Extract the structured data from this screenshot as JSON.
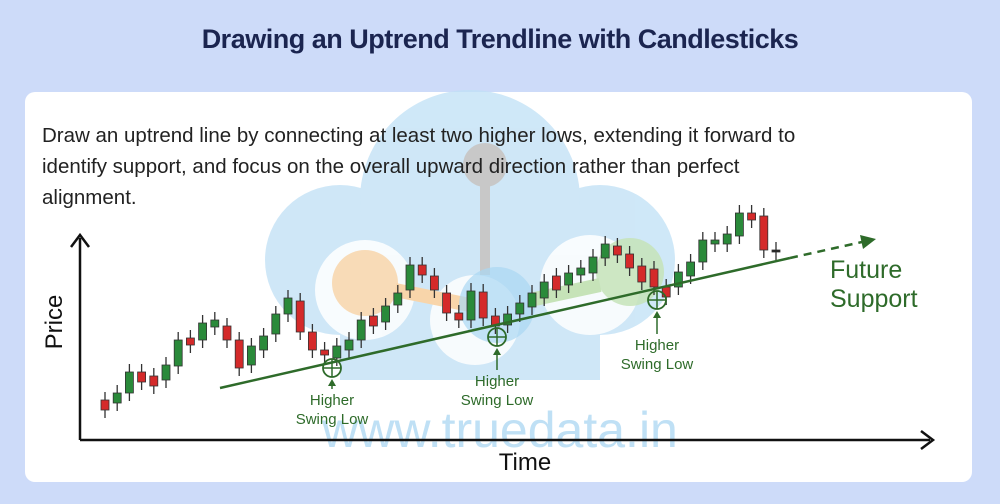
{
  "header": {
    "title": "Drawing an Uptrend Trendline with Candlesticks"
  },
  "description": [
    "Draw an uptrend line by connecting at least two higher lows, extending it forward to",
    "identify support, and focus on the overall upward direction rather than perfect",
    "alignment."
  ],
  "diagram": {
    "y_axis_label": "Price",
    "x_axis_label": "Time",
    "trend_label": [
      "Future",
      "Support"
    ],
    "swing_lows": [
      {
        "label": [
          "Higher",
          "Swing Low"
        ]
      },
      {
        "label": [
          "Higher",
          "Swing Low"
        ]
      },
      {
        "label": [
          "Higher",
          "Swing Low"
        ]
      }
    ],
    "watermark": "www.truedata.in"
  }
}
